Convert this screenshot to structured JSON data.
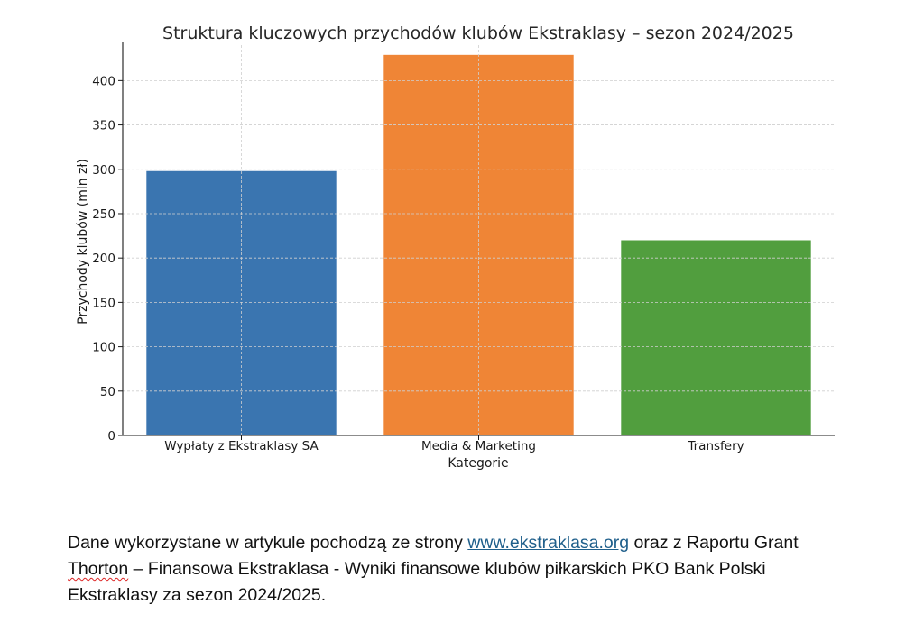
{
  "chart_data": {
    "type": "bar",
    "title": "Struktura kluczowych przychodów klubów Ekstraklasy – sezon 2024/2025",
    "xlabel": "Kategorie",
    "ylabel": "Przychody klubów (mln zł)",
    "categories": [
      "Wypłaty z Ekstraklasy SA",
      "Media & Marketing",
      "Transfery"
    ],
    "values": [
      298,
      429,
      220
    ],
    "colors": [
      "#3a75b0",
      "#ef8536",
      "#519e3e"
    ],
    "ylim": [
      0,
      440
    ],
    "yticks": [
      0,
      50,
      100,
      150,
      200,
      250,
      300,
      350,
      400
    ],
    "grid": true
  },
  "footnote": {
    "part1": "Dane wykorzystane w artykule pochodzą ze strony ",
    "link": "www.ekstraklasa.org",
    "part2": " oraz z Raportu Grant ",
    "misspelled": "Thorton",
    "part3": " – Finansowa Ekstraklasa - Wyniki finansowe klubów piłkarskich PKO Bank Polski Ekstraklasy za sezon 2024/2025."
  }
}
